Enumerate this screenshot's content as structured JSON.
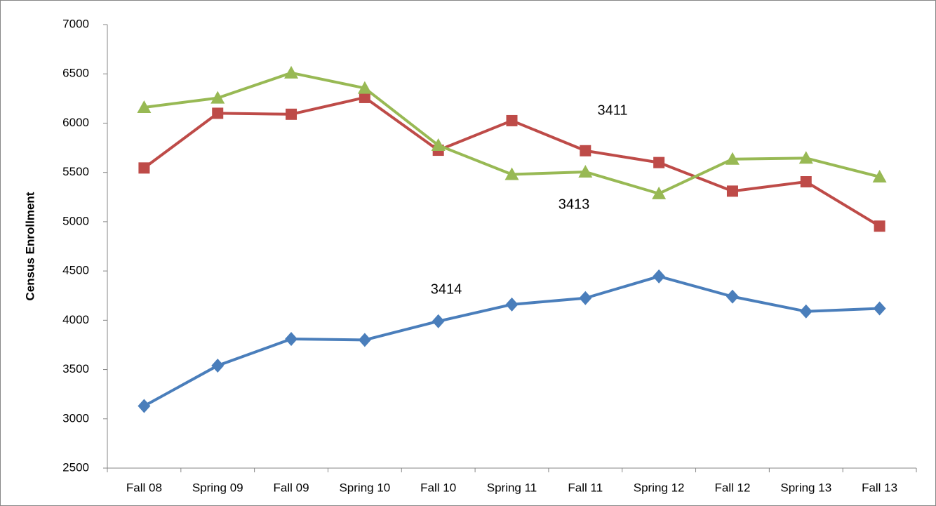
{
  "chart_data": {
    "type": "line",
    "y_label": "Census Enrollment",
    "categories": [
      "Fall 08",
      "Spring 09",
      "Fall 09",
      "Spring 10",
      "Fall 10",
      "Spring 11",
      "Fall 11",
      "Spring 12",
      "Fall 12",
      "Spring 13",
      "Fall 13"
    ],
    "series": [
      {
        "name": "3414",
        "color": "#4a7ebb",
        "marker": "diamond",
        "values": [
          3130,
          3540,
          3810,
          3800,
          3990,
          4160,
          4225,
          4445,
          4240,
          4090,
          4120
        ]
      },
      {
        "name": "3411",
        "color": "#be4b48",
        "marker": "square",
        "values": [
          5545,
          6100,
          6090,
          6260,
          5725,
          6025,
          5720,
          5600,
          5310,
          5405,
          4955
        ]
      },
      {
        "name": "3413",
        "color": "#98b954",
        "marker": "triangle",
        "values": [
          6160,
          6255,
          6510,
          6355,
          5775,
          5480,
          5505,
          5285,
          5635,
          5645,
          5455
        ]
      }
    ],
    "ylim": [
      2500,
      7000
    ],
    "yticks": [
      2500,
      3000,
      3500,
      4000,
      4500,
      5000,
      5500,
      6000,
      6500,
      7000
    ],
    "grid": false
  }
}
